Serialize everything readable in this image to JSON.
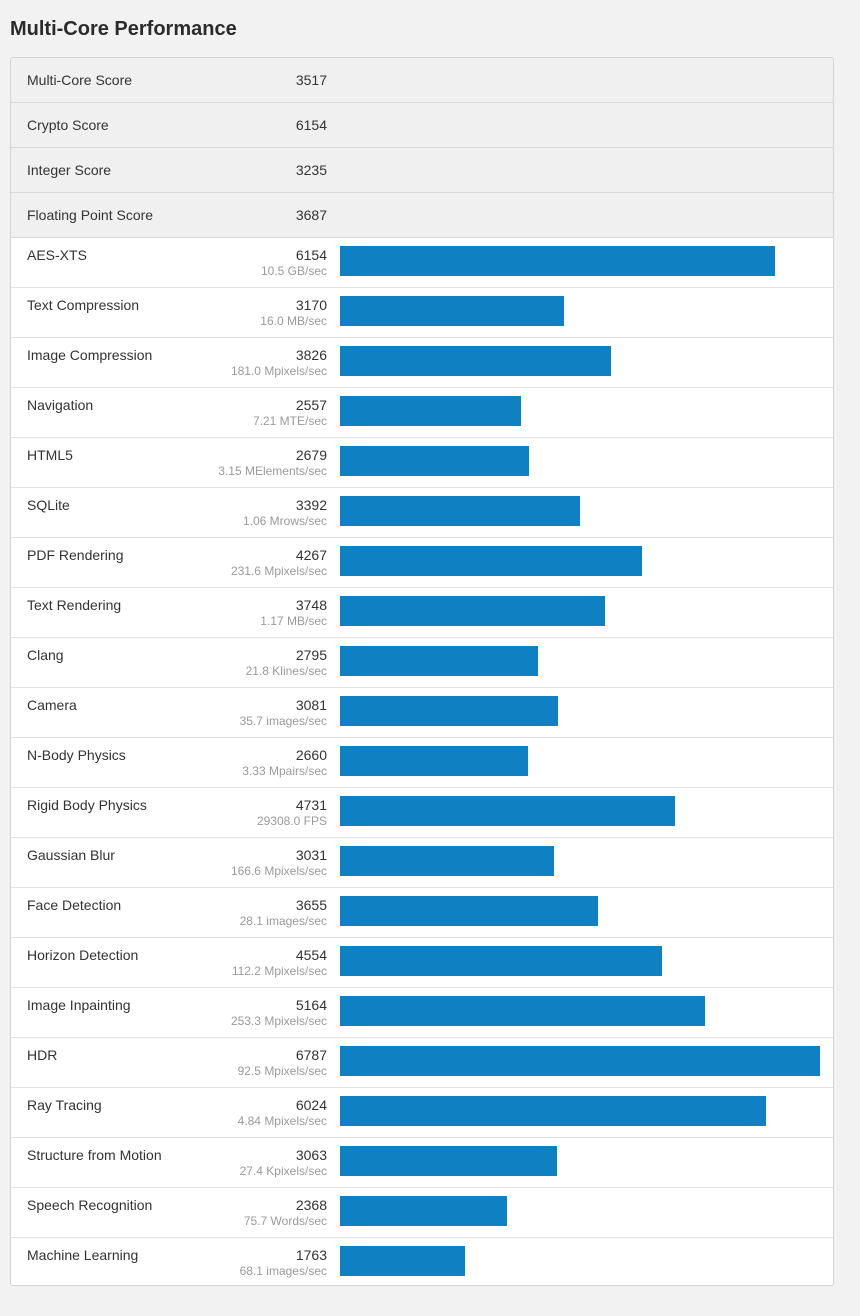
{
  "title": "Multi-Core Performance",
  "colors": {
    "bar": "#0f80c1",
    "summary_bg": "#f0f0f0"
  },
  "summary": [
    {
      "name": "Multi-Core Score",
      "score": "3517"
    },
    {
      "name": "Crypto Score",
      "score": "6154"
    },
    {
      "name": "Integer Score",
      "score": "3235"
    },
    {
      "name": "Floating Point Score",
      "score": "3687"
    }
  ],
  "benchmarks": [
    {
      "name": "AES-XTS",
      "score": "6154",
      "rate": "10.5 GB/sec"
    },
    {
      "name": "Text Compression",
      "score": "3170",
      "rate": "16.0 MB/sec"
    },
    {
      "name": "Image Compression",
      "score": "3826",
      "rate": "181.0 Mpixels/sec"
    },
    {
      "name": "Navigation",
      "score": "2557",
      "rate": "7.21 MTE/sec"
    },
    {
      "name": "HTML5",
      "score": "2679",
      "rate": "3.15 MElements/sec"
    },
    {
      "name": "SQLite",
      "score": "3392",
      "rate": "1.06 Mrows/sec"
    },
    {
      "name": "PDF Rendering",
      "score": "4267",
      "rate": "231.6 Mpixels/sec"
    },
    {
      "name": "Text Rendering",
      "score": "3748",
      "rate": "1.17 MB/sec"
    },
    {
      "name": "Clang",
      "score": "2795",
      "rate": "21.8 Klines/sec"
    },
    {
      "name": "Camera",
      "score": "3081",
      "rate": "35.7 images/sec"
    },
    {
      "name": "N-Body Physics",
      "score": "2660",
      "rate": "3.33 Mpairs/sec"
    },
    {
      "name": "Rigid Body Physics",
      "score": "4731",
      "rate": "29308.0 FPS"
    },
    {
      "name": "Gaussian Blur",
      "score": "3031",
      "rate": "166.6 Mpixels/sec"
    },
    {
      "name": "Face Detection",
      "score": "3655",
      "rate": "28.1 images/sec"
    },
    {
      "name": "Horizon Detection",
      "score": "4554",
      "rate": "112.2 Mpixels/sec"
    },
    {
      "name": "Image Inpainting",
      "score": "5164",
      "rate": "253.3 Mpixels/sec"
    },
    {
      "name": "HDR",
      "score": "6787",
      "rate": "92.5 Mpixels/sec"
    },
    {
      "name": "Ray Tracing",
      "score": "6024",
      "rate": "4.84 Mpixels/sec"
    },
    {
      "name": "Structure from Motion",
      "score": "3063",
      "rate": "27.4 Kpixels/sec"
    },
    {
      "name": "Speech Recognition",
      "score": "2368",
      "rate": "75.7 Words/sec"
    },
    {
      "name": "Machine Learning",
      "score": "1763",
      "rate": "68.1 images/sec"
    }
  ]
}
